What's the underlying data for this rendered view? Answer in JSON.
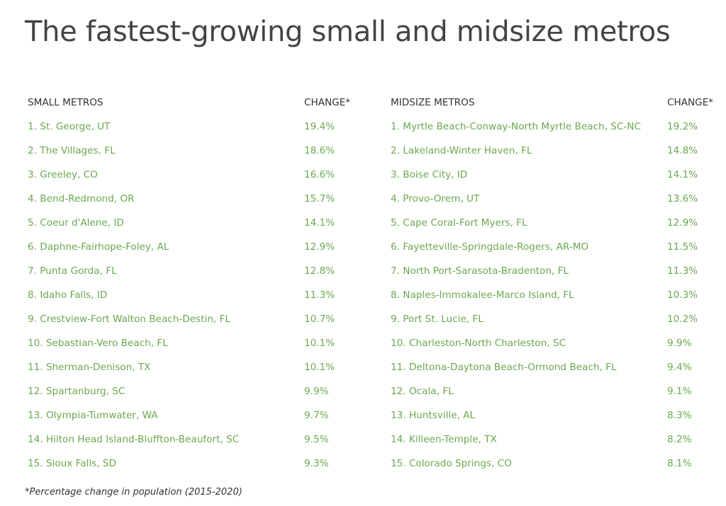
{
  "chart_data": {
    "type": "table",
    "title": "The fastest-growing small and midsize metros",
    "footnote": "*Percentage change in population (2015-2020)",
    "tables": [
      {
        "headers": [
          "SMALL METROS",
          "CHANGE*"
        ],
        "rows": [
          [
            "1. St. George, UT",
            "19.4%"
          ],
          [
            "2. The Villages, FL",
            "18.6%"
          ],
          [
            "3. Greeley, CO",
            "16.6%"
          ],
          [
            "4. Bend-Redmond, OR",
            "15.7%"
          ],
          [
            "5. Coeur d'Alene, ID",
            "14.1%"
          ],
          [
            "6. Daphne-Fairhope-Foley, AL",
            "12.9%"
          ],
          [
            "7. Punta Gorda, FL",
            "12.8%"
          ],
          [
            "8. Idaho Falls, ID",
            "11.3%"
          ],
          [
            "9. Crestview-Fort Walton Beach-Destin, FL",
            "10.7%"
          ],
          [
            "10. Sebastian-Vero Beach, FL",
            "10.1%"
          ],
          [
            "11. Sherman-Denison, TX",
            "10.1%"
          ],
          [
            "12. Spartanburg, SC",
            "9.9%"
          ],
          [
            "13. Olympia-Tumwater, WA",
            "9.7%"
          ],
          [
            "14. Hilton Head Island-Bluffton-Beaufort, SC",
            "9.5%"
          ],
          [
            "15. Sioux Falls, SD",
            "9.3%"
          ]
        ]
      },
      {
        "headers": [
          "MIDSIZE METROS",
          "CHANGE*"
        ],
        "rows": [
          [
            "1. Myrtle Beach-Conway-North Myrtle Beach, SC-NC",
            "19.2%"
          ],
          [
            "2. Lakeland-Winter Haven, FL",
            "14.8%"
          ],
          [
            "3. Boise City, ID",
            "14.1%"
          ],
          [
            "4. Provo-Orem, UT",
            "13.6%"
          ],
          [
            "5. Cape Coral-Fort Myers, FL",
            "12.9%"
          ],
          [
            "6. Fayetteville-Springdale-Rogers, AR-MO",
            "11.5%"
          ],
          [
            "7. North Port-Sarasota-Bradenton, FL",
            "11.3%"
          ],
          [
            "8. Naples-Immokalee-Marco Island, FL",
            "10.3%"
          ],
          [
            "9. Port St. Lucie, FL",
            "10.2%"
          ],
          [
            "10. Charleston-North Charleston, SC",
            "9.9%"
          ],
          [
            "11. Deltona-Daytona Beach-Ormond Beach, FL",
            "9.4%"
          ],
          [
            "12. Ocala, FL",
            "9.1%"
          ],
          [
            "13. Huntsville, AL",
            "8.3%"
          ],
          [
            "14. Killeen-Temple, TX",
            "8.2%"
          ],
          [
            "15. Colorado Springs, CO",
            "8.1%"
          ]
        ]
      }
    ]
  },
  "colors": {
    "title": "#444444",
    "header": "#333333",
    "value": "#6aa84f"
  }
}
